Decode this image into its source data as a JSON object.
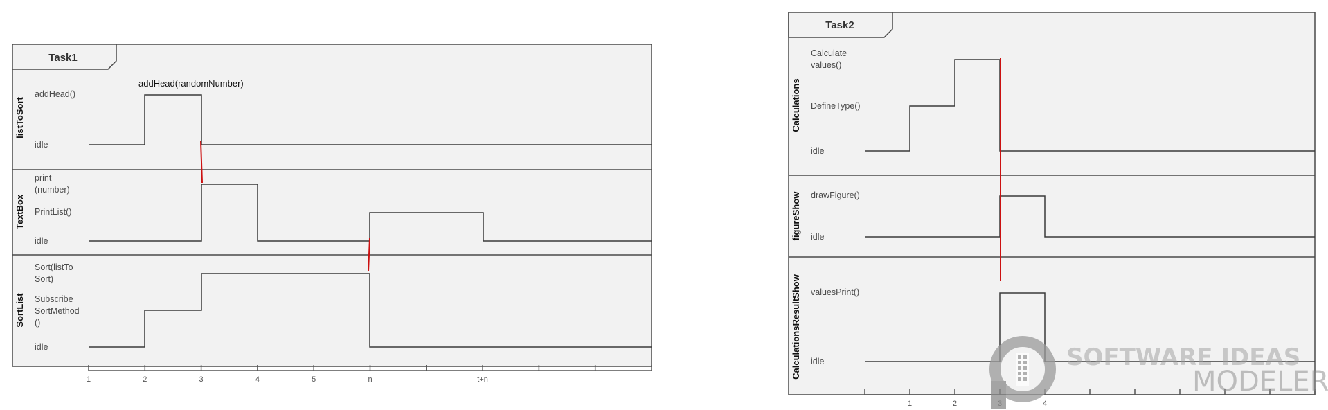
{
  "diagram_type": "UML timing diagram",
  "frames": [
    {
      "title": "Task1",
      "lifelines": [
        {
          "name": "listToSort",
          "states": [
            "addHead()",
            "idle"
          ]
        },
        {
          "name": "TextBox",
          "states": [
            "print\n(number)",
            "PrintList()",
            "idle"
          ]
        },
        {
          "name": "SortList",
          "states": [
            "Sort(listTo\nSort)",
            "Subscribe\nSortMethod\n()",
            "idle"
          ]
        }
      ],
      "messages": [
        "addHead(randomNumber)"
      ],
      "ticks": [
        "1",
        "2",
        "3",
        "4",
        "5",
        "n",
        "",
        "t+n",
        "",
        "",
        ""
      ]
    },
    {
      "title": "Task2",
      "lifelines": [
        {
          "name": "Calculations",
          "states": [
            "Calculate\nvalues()",
            "DefineType()",
            "idle"
          ]
        },
        {
          "name": "figureShow",
          "states": [
            "drawFigure()",
            "idle"
          ]
        },
        {
          "name": "CalculationsResultShow",
          "states": [
            "valuesPrint()",
            "idle"
          ]
        }
      ],
      "ticks": [
        "",
        "1",
        "2",
        "3",
        "4",
        "",
        "",
        "",
        "",
        "",
        ""
      ]
    }
  ],
  "watermark": {
    "line1": "SOFTWARE IDEAS",
    "line2": "MODELER"
  },
  "colors": {
    "frame_bg": "#f2f2f2",
    "frame_border": "#4a4a4a",
    "message": "#cc1111",
    "watermark": "#9a9a9a"
  }
}
